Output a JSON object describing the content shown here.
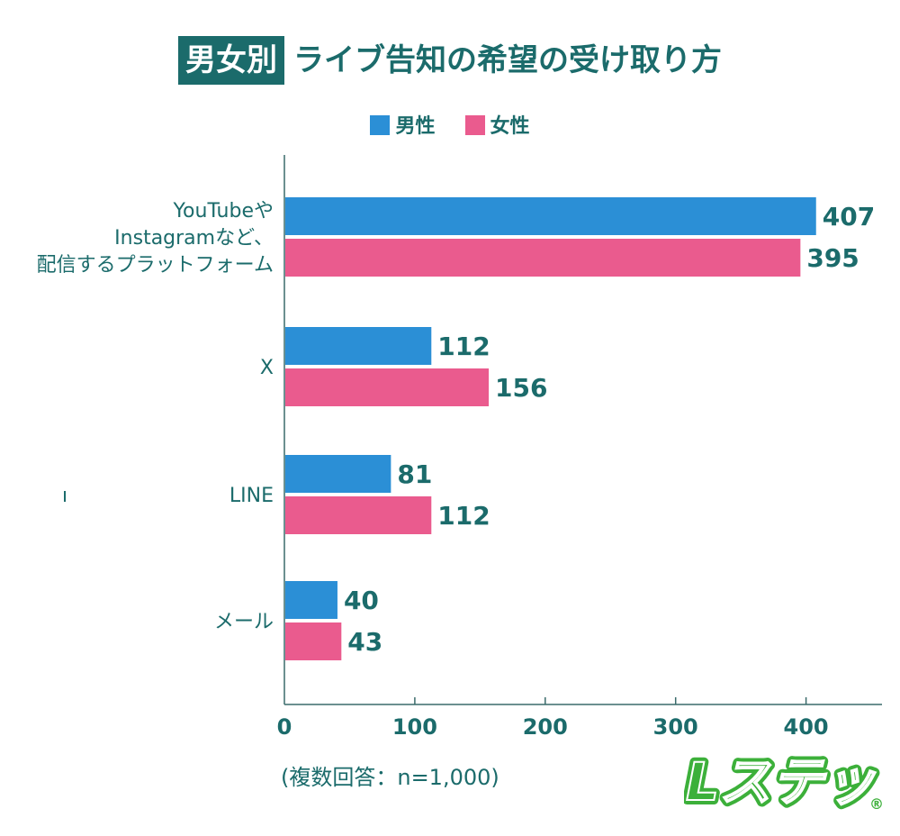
{
  "title": {
    "badge": "男女別",
    "text": "ライブ告知の希望の受け取り方"
  },
  "legend": [
    {
      "label": "男性",
      "color": "#2b8fd6"
    },
    {
      "label": "女性",
      "color": "#ea5b8e"
    }
  ],
  "note": "(複数回答：n=1,000)",
  "logo": {
    "text": "Lステップ",
    "registered": "®",
    "color": "#3cb03a"
  },
  "colors": {
    "text": "#1b6b6b",
    "axis": "#3a6b6b"
  },
  "chart_data": {
    "type": "bar",
    "orientation": "horizontal",
    "categories": [
      [
        "YouTubeや",
        "Instagramなど、",
        "配信するプラットフォーム"
      ],
      [
        "X"
      ],
      [
        "LINE"
      ],
      [
        "メール"
      ]
    ],
    "series": [
      {
        "name": "男性",
        "values": [
          407,
          112,
          81,
          40
        ]
      },
      {
        "name": "女性",
        "values": [
          395,
          156,
          112,
          43
        ]
      }
    ],
    "xlim": [
      0,
      450
    ],
    "xticks": [
      "0",
      "100",
      "200",
      "300",
      "400"
    ],
    "xtick_values": [
      0,
      100,
      200,
      300,
      400
    ],
    "legend_position": "top",
    "grid": false
  }
}
